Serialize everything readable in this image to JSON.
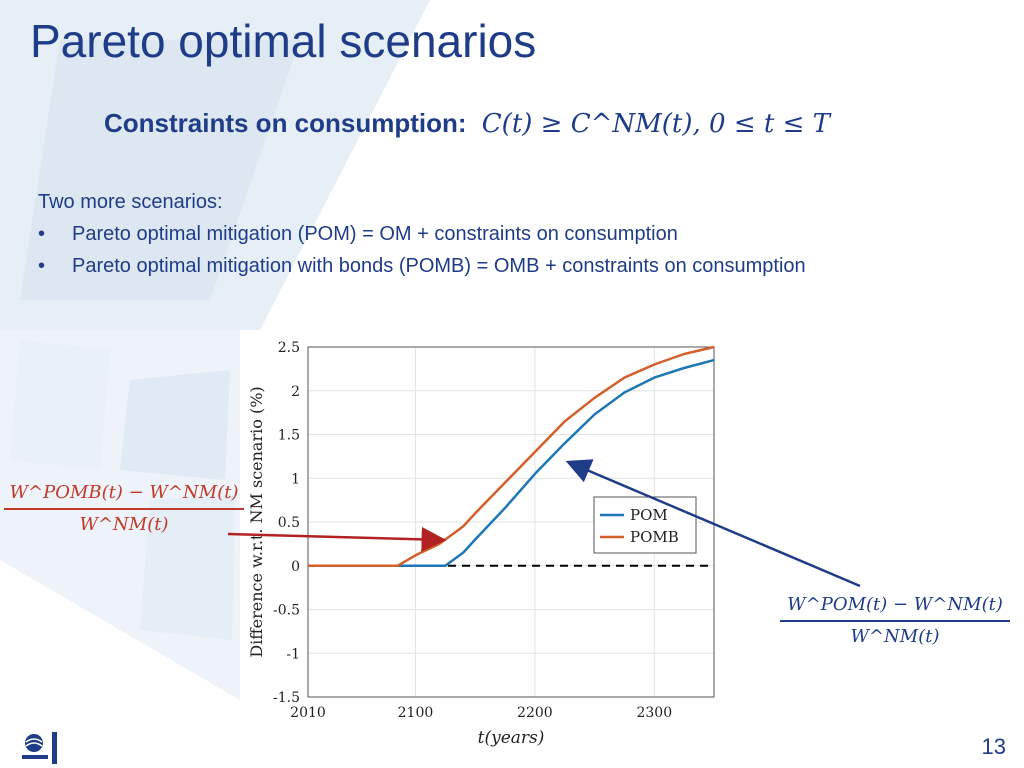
{
  "slide": {
    "title": "Pareto optimal scenarios",
    "constraint_label": "Constraints on consumption:",
    "constraint_math": "C(t) ≥ C^NM(t),  0 ≤ t ≤ T",
    "intro": "Two more scenarios:",
    "bullets": [
      "Pareto optimal mitigation (POM) = OM + constraints on consumption",
      "Pareto optimal mitigation with bonds (POMB) = OMB + constraints on consumption"
    ],
    "page_number": "13",
    "fraction_pomb": {
      "numerator": "W^POMB(t) − W^NM(t)",
      "denominator": "W^NM(t)"
    },
    "fraction_pom": {
      "numerator": "W^POM(t) − W^NM(t)",
      "denominator": "W^NM(t)"
    },
    "colors": {
      "title": "#1f3c88",
      "pom": "#1f77b4",
      "pomb": "#d35f2a",
      "annotation_red": "#c0392b"
    }
  },
  "chart_data": {
    "type": "line",
    "xlabel": "t(years)",
    "ylabel": "Difference w.r.t. NM scenario (%)",
    "xlim": [
      2010,
      2350
    ],
    "ylim": [
      -1.5,
      2.5
    ],
    "xticks": [
      2010,
      2100,
      2200,
      2300
    ],
    "yticks": [
      -1.5,
      -1,
      -0.5,
      0,
      0.5,
      1,
      1.5,
      2,
      2.5
    ],
    "ytick_labels": [
      "-1.5",
      "-1",
      "-0.5",
      "0",
      "0.5",
      "1",
      "1.5",
      "2",
      "2.5"
    ],
    "grid": true,
    "legend_position": "center-right",
    "x": [
      2010,
      2080,
      2085,
      2100,
      2120,
      2125,
      2140,
      2150,
      2175,
      2200,
      2225,
      2250,
      2275,
      2300,
      2325,
      2350
    ],
    "series": [
      {
        "name": "POM",
        "values": [
          0,
          0,
          0,
          0,
          0,
          0,
          0.15,
          0.3,
          0.66,
          1.05,
          1.4,
          1.73,
          1.98,
          2.15,
          2.26,
          2.35
        ]
      },
      {
        "name": "POMB",
        "values": [
          0,
          0,
          0,
          0.12,
          0.25,
          0.3,
          0.45,
          0.6,
          0.95,
          1.3,
          1.65,
          1.92,
          2.15,
          2.3,
          2.42,
          2.5
        ]
      }
    ],
    "reference_line": {
      "y": 0,
      "style": "dashed"
    }
  }
}
